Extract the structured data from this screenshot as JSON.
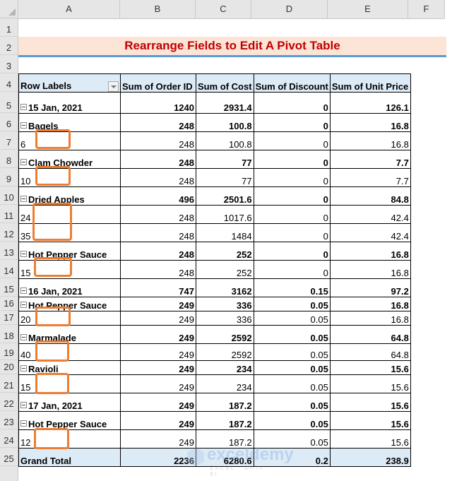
{
  "sheet": {
    "columns": [
      "A",
      "B",
      "C",
      "D",
      "E",
      "F"
    ],
    "rows": [
      1,
      2,
      3,
      4,
      5,
      6,
      7,
      8,
      9,
      10,
      11,
      12,
      13,
      14,
      15,
      16,
      17,
      18,
      19,
      20,
      21,
      22,
      23,
      24,
      25
    ],
    "title": "Rearrange Fields to Edit A Pivot Table"
  },
  "pivot": {
    "headers": [
      "Row Labels",
      "Sum of Order ID",
      "Sum of Cost",
      "Sum of Discount",
      "Sum of Unit Price"
    ],
    "rows": [
      {
        "level": 1,
        "label": "15 Jan, 2021",
        "order_id": "1240",
        "cost": "2931.4",
        "discount": "0",
        "unit_price": "126.1"
      },
      {
        "level": 2,
        "label": "Bagels",
        "order_id": "248",
        "cost": "100.8",
        "discount": "0",
        "unit_price": "16.8"
      },
      {
        "level": 3,
        "label": "6",
        "order_id": "248",
        "cost": "100.8",
        "discount": "0",
        "unit_price": "16.8"
      },
      {
        "level": 2,
        "label": "Clam Chowder",
        "order_id": "248",
        "cost": "77",
        "discount": "0",
        "unit_price": "7.7"
      },
      {
        "level": 3,
        "label": "10",
        "order_id": "248",
        "cost": "77",
        "discount": "0",
        "unit_price": "7.7"
      },
      {
        "level": 2,
        "label": "Dried Apples",
        "order_id": "496",
        "cost": "2501.6",
        "discount": "0",
        "unit_price": "84.8"
      },
      {
        "level": 3,
        "label": "24",
        "order_id": "248",
        "cost": "1017.6",
        "discount": "0",
        "unit_price": "42.4"
      },
      {
        "level": 3,
        "label": "35",
        "order_id": "248",
        "cost": "1484",
        "discount": "0",
        "unit_price": "42.4"
      },
      {
        "level": 2,
        "label": "Hot Pepper Sauce",
        "order_id": "248",
        "cost": "252",
        "discount": "0",
        "unit_price": "16.8"
      },
      {
        "level": 3,
        "label": "15",
        "order_id": "248",
        "cost": "252",
        "discount": "0",
        "unit_price": "16.8"
      },
      {
        "level": 1,
        "label": "16 Jan, 2021",
        "order_id": "747",
        "cost": "3162",
        "discount": "0.15",
        "unit_price": "97.2"
      },
      {
        "level": 2,
        "label": "Hot Pepper Sauce",
        "order_id": "249",
        "cost": "336",
        "discount": "0.05",
        "unit_price": "16.8"
      },
      {
        "level": 3,
        "label": "20",
        "order_id": "249",
        "cost": "336",
        "discount": "0.05",
        "unit_price": "16.8"
      },
      {
        "level": 2,
        "label": "Marmalade",
        "order_id": "249",
        "cost": "2592",
        "discount": "0.05",
        "unit_price": "64.8"
      },
      {
        "level": 3,
        "label": "40",
        "order_id": "249",
        "cost": "2592",
        "discount": "0.05",
        "unit_price": "64.8"
      },
      {
        "level": 2,
        "label": "Ravioli",
        "order_id": "249",
        "cost": "234",
        "discount": "0.05",
        "unit_price": "15.6"
      },
      {
        "level": 3,
        "label": "15",
        "order_id": "249",
        "cost": "234",
        "discount": "0.05",
        "unit_price": "15.6"
      },
      {
        "level": 1,
        "label": "17 Jan, 2021",
        "order_id": "249",
        "cost": "187.2",
        "discount": "0.05",
        "unit_price": "15.6"
      },
      {
        "level": 2,
        "label": "Hot Pepper Sauce",
        "order_id": "249",
        "cost": "187.2",
        "discount": "0.05",
        "unit_price": "15.6"
      },
      {
        "level": 3,
        "label": "12",
        "order_id": "249",
        "cost": "187.2",
        "discount": "0.05",
        "unit_price": "15.6"
      }
    ],
    "grand_total": {
      "label": "Grand Total",
      "order_id": "2236",
      "cost": "6280.6",
      "discount": "0.2",
      "unit_price": "238.9"
    }
  },
  "watermark": {
    "brand": "exceldemy",
    "tagline": "EXCEL · DATA · BI"
  },
  "colors": {
    "title": "#c00000",
    "title_bg": "#fce4d6",
    "header_bg": "#ddebf7",
    "highlight": "#ed7d31",
    "underline": "#5b9bd5"
  }
}
